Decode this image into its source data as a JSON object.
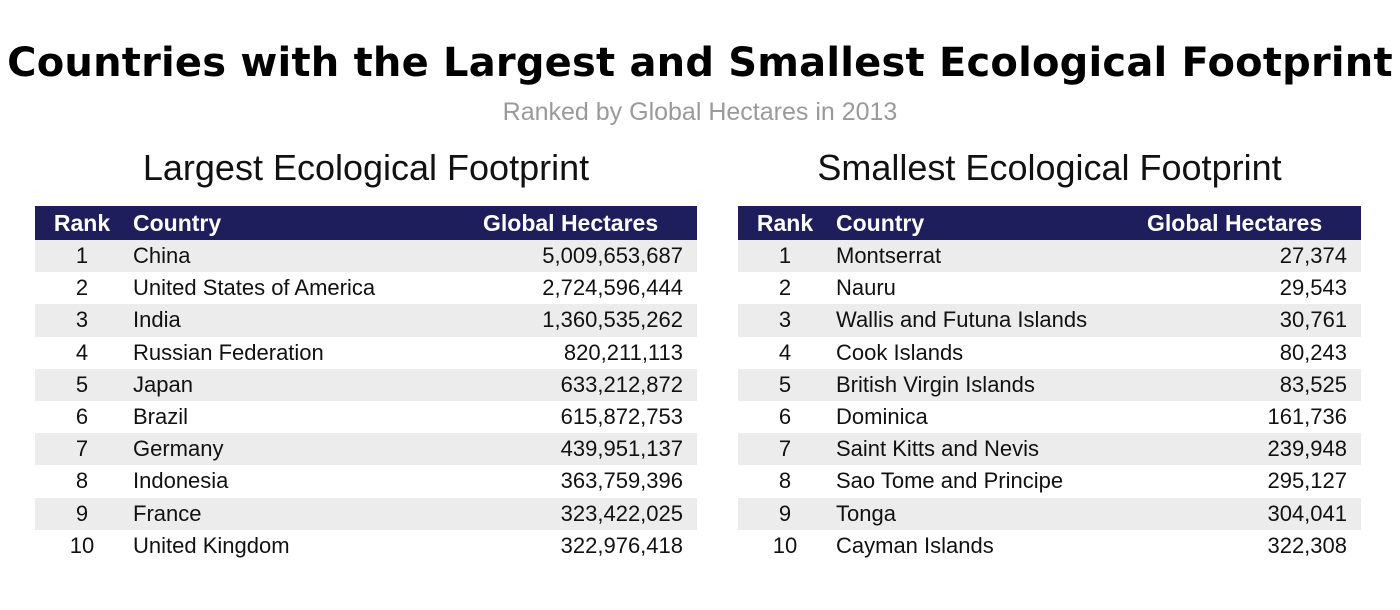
{
  "title": "Countries with the Largest and Smallest Ecological Footprint",
  "subtitle": "Ranked by Global Hectares in 2013",
  "colors": {
    "header_bg": "#1f1e5c",
    "row_shade": "#ececec",
    "subtitle": "#9a9a9a"
  },
  "chart_data": [
    {
      "type": "table",
      "title": "Largest Ecological Footprint",
      "columns": [
        "Rank",
        "Country",
        "Global Hectares"
      ],
      "rows": [
        {
          "rank": "1",
          "country": "China",
          "value": "5,009,653,687"
        },
        {
          "rank": "2",
          "country": "United States of America",
          "value": "2,724,596,444"
        },
        {
          "rank": "3",
          "country": "India",
          "value": "1,360,535,262"
        },
        {
          "rank": "4",
          "country": "Russian Federation",
          "value": "820,211,113"
        },
        {
          "rank": "5",
          "country": "Japan",
          "value": "633,212,872"
        },
        {
          "rank": "6",
          "country": "Brazil",
          "value": "615,872,753"
        },
        {
          "rank": "7",
          "country": "Germany",
          "value": "439,951,137"
        },
        {
          "rank": "8",
          "country": "Indonesia",
          "value": "363,759,396"
        },
        {
          "rank": "9",
          "country": "France",
          "value": "323,422,025"
        },
        {
          "rank": "10",
          "country": "United Kingdom",
          "value": "322,976,418"
        }
      ]
    },
    {
      "type": "table",
      "title": "Smallest Ecological Footprint",
      "columns": [
        "Rank",
        "Country",
        "Global Hectares"
      ],
      "rows": [
        {
          "rank": "1",
          "country": "Montserrat",
          "value": "27,374"
        },
        {
          "rank": "2",
          "country": "Nauru",
          "value": "29,543"
        },
        {
          "rank": "3",
          "country": "Wallis and Futuna Islands",
          "value": "30,761"
        },
        {
          "rank": "4",
          "country": "Cook Islands",
          "value": "80,243"
        },
        {
          "rank": "5",
          "country": "British Virgin Islands",
          "value": "83,525"
        },
        {
          "rank": "6",
          "country": "Dominica",
          "value": "161,736"
        },
        {
          "rank": "7",
          "country": "Saint Kitts and Nevis",
          "value": "239,948"
        },
        {
          "rank": "8",
          "country": "Sao Tome and Principe",
          "value": "295,127"
        },
        {
          "rank": "9",
          "country": "Tonga",
          "value": "304,041"
        },
        {
          "rank": "10",
          "country": "Cayman Islands",
          "value": "322,308"
        }
      ]
    }
  ]
}
